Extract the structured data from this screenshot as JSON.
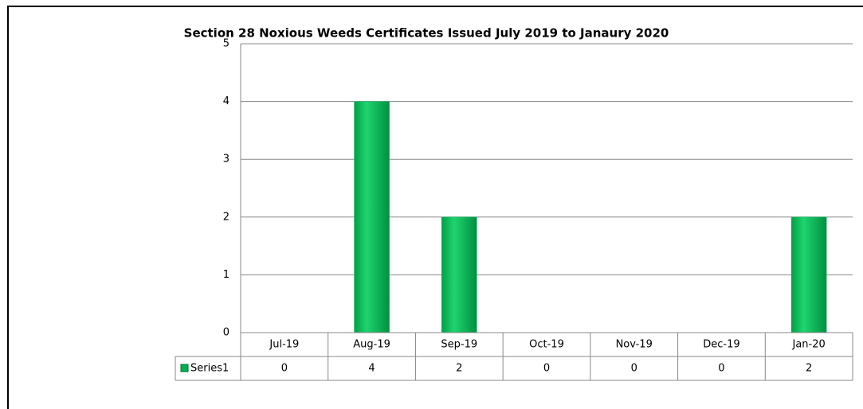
{
  "chart_data": {
    "type": "bar",
    "title": "Section 28 Noxious Weeds Certificates Issued July 2019 to Janaury 2020",
    "categories": [
      "Jul-19",
      "Aug-19",
      "Sep-19",
      "Oct-19",
      "Nov-19",
      "Dec-19",
      "Jan-20"
    ],
    "series": [
      {
        "name": "Series1",
        "color": "#00b050",
        "values": [
          0,
          4,
          2,
          0,
          0,
          0,
          2
        ]
      }
    ],
    "ylim": [
      0,
      5
    ],
    "yticks": [
      0,
      1,
      2,
      3,
      4,
      5
    ],
    "grid": true,
    "data_table": true
  }
}
